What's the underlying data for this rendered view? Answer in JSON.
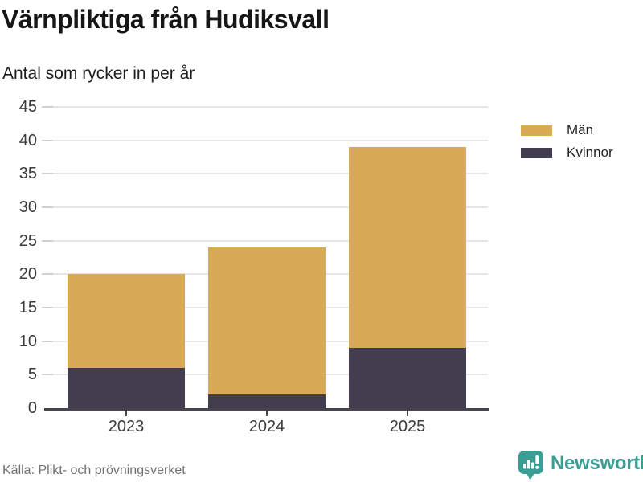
{
  "title": "Värnpliktiga från Hudiksvall",
  "subtitle": "Antal som rycker in per år",
  "source": "Källa: Plikt- och prövningsverket",
  "branding": {
    "name": "Newsworthy",
    "color": "#3A9E94"
  },
  "chart_data": {
    "type": "bar",
    "stacked": true,
    "title": "Värnpliktiga från Hudiksvall",
    "subtitle": "Antal som rycker in per år",
    "categories": [
      "2023",
      "2024",
      "2025"
    ],
    "series": [
      {
        "name": "Kvinnor",
        "color": "#423E50",
        "values": [
          6,
          2,
          9
        ]
      },
      {
        "name": "Män",
        "color": "#D8AA57",
        "values": [
          14,
          22,
          30
        ]
      }
    ],
    "stack_totals": [
      20,
      24,
      39
    ],
    "ylim": [
      0,
      45
    ],
    "yticks": [
      0,
      5,
      10,
      15,
      20,
      25,
      30,
      35,
      40,
      45
    ],
    "grid": true,
    "legend_position": "top-right",
    "legend_order": [
      "Män",
      "Kvinnor"
    ],
    "xlabel": "",
    "ylabel": ""
  },
  "colors": {
    "background": "#FFFFFF",
    "grid": "#E6E6E6",
    "tick_stub": "#CFCFCF",
    "axis": "#46434F",
    "tick_label": "#3B3B3B",
    "title": "#161616",
    "subtitle": "#1C1C1C",
    "source": "#707070"
  }
}
